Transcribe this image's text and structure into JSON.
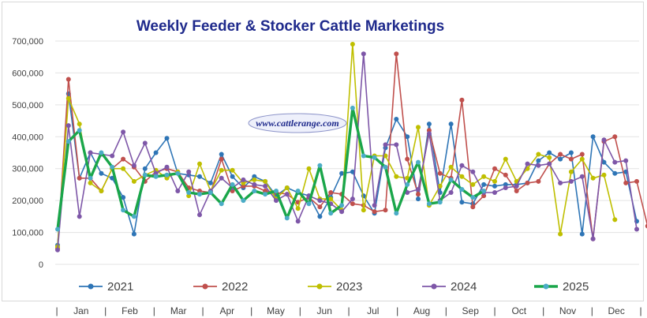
{
  "chart_data": {
    "type": "line",
    "title": "Weekly Feeder & Stocker Cattle Marketings",
    "watermark": "www.cattlerange.com",
    "xlabel": "",
    "ylabel": "",
    "ylim": [
      0,
      700000
    ],
    "yticks": [
      0,
      100000,
      200000,
      300000,
      400000,
      500000,
      600000,
      700000
    ],
    "ytick_labels": [
      "0",
      "100,000",
      "200,000",
      "300,000",
      "400,000",
      "500,000",
      "600,000",
      "700,000"
    ],
    "x_label_items": [
      "|",
      "Jan",
      "|",
      "Feb",
      "|",
      "Mar",
      "|",
      "Apr",
      "|",
      "May",
      "|",
      "Jun",
      "|",
      "Jul",
      "|",
      "Aug",
      "|",
      "Sep",
      "|",
      "Oct",
      "|",
      "Nov",
      "|",
      "Dec",
      "|"
    ],
    "grid": true,
    "legend_position": "bottom",
    "series": [
      {
        "name": "2021",
        "color": "#2e75b6",
        "values": [
          60000,
          535000,
          270000,
          350000,
          285000,
          270000,
          210000,
          95000,
          300000,
          350000,
          395000,
          285000,
          280000,
          275000,
          255000,
          345000,
          275000,
          240000,
          275000,
          260000,
          215000,
          240000,
          225000,
          215000,
          150000,
          210000,
          285000,
          290000,
          215000,
          160000,
          365000,
          455000,
          400000,
          205000,
          440000,
          225000,
          440000,
          195000,
          190000,
          250000,
          245000,
          250000,
          250000,
          255000,
          325000,
          350000,
          330000,
          350000,
          95000,
          400000,
          320000,
          285000,
          290000,
          135000
        ]
      },
      {
        "name": "2022",
        "color": "#c0504d",
        "values": [
          50000,
          580000,
          270000,
          270000,
          230000,
          300000,
          330000,
          305000,
          260000,
          290000,
          300000,
          290000,
          240000,
          230000,
          225000,
          330000,
          230000,
          245000,
          245000,
          230000,
          225000,
          220000,
          195000,
          210000,
          180000,
          225000,
          220000,
          190000,
          185000,
          165000,
          170000,
          660000,
          330000,
          220000,
          420000,
          285000,
          270000,
          515000,
          180000,
          215000,
          300000,
          280000,
          230000,
          255000,
          260000,
          315000,
          345000,
          330000,
          345000,
          80000,
          385000,
          400000,
          255000,
          260000,
          120000
        ]
      },
      {
        "name": "2023",
        "color": "#bfbf00",
        "values": [
          55000,
          520000,
          440000,
          255000,
          230000,
          300000,
          300000,
          260000,
          280000,
          295000,
          270000,
          290000,
          215000,
          315000,
          230000,
          295000,
          295000,
          255000,
          265000,
          260000,
          205000,
          240000,
          175000,
          300000,
          205000,
          205000,
          170000,
          690000,
          170000,
          340000,
          340000,
          275000,
          270000,
          430000,
          185000,
          245000,
          305000,
          275000,
          250000,
          275000,
          260000,
          330000,
          260000,
          300000,
          345000,
          335000,
          95000,
          290000,
          330000,
          270000,
          280000,
          140000
        ]
      },
      {
        "name": "2024",
        "color": "#7e57a8",
        "values": [
          45000,
          435000,
          150000,
          350000,
          345000,
          340000,
          415000,
          310000,
          380000,
          285000,
          305000,
          230000,
          290000,
          155000,
          230000,
          270000,
          240000,
          265000,
          250000,
          245000,
          200000,
          220000,
          135000,
          215000,
          200000,
          190000,
          165000,
          205000,
          660000,
          185000,
          375000,
          375000,
          225000,
          235000,
          410000,
          200000,
          225000,
          310000,
          290000,
          225000,
          225000,
          240000,
          245000,
          315000,
          310000,
          315000,
          255000,
          260000,
          275000,
          80000,
          390000,
          320000,
          325000,
          110000
        ]
      },
      {
        "name": "2025",
        "color": "#1aa64a",
        "values": [
          110000,
          385000,
          420000,
          270000,
          350000,
          305000,
          170000,
          150000,
          280000,
          275000,
          280000,
          285000,
          225000,
          220000,
          225000,
          190000,
          250000,
          200000,
          230000,
          220000,
          230000,
          145000,
          230000,
          190000,
          310000,
          160000,
          185000,
          490000,
          340000,
          335000,
          305000,
          160000,
          250000,
          320000,
          190000,
          195000,
          265000,
          235000,
          210000,
          230000
        ]
      }
    ]
  }
}
